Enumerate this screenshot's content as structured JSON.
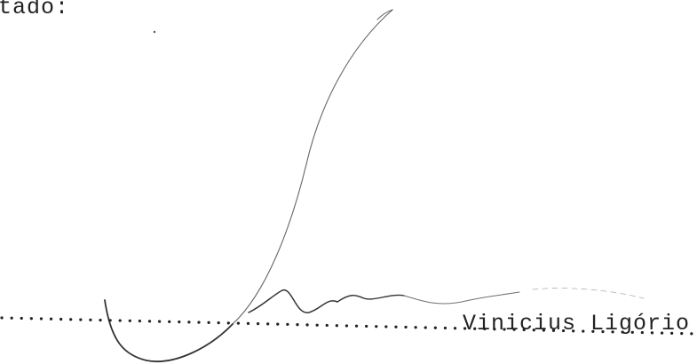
{
  "document": {
    "heading_fragment": "tado:",
    "signer_name": "Vinicius Ligório"
  },
  "signature": {
    "type": "handwritten-signature",
    "ink_color": "#333333"
  },
  "signature_line": {
    "style": "dotted",
    "color": "#222222"
  }
}
